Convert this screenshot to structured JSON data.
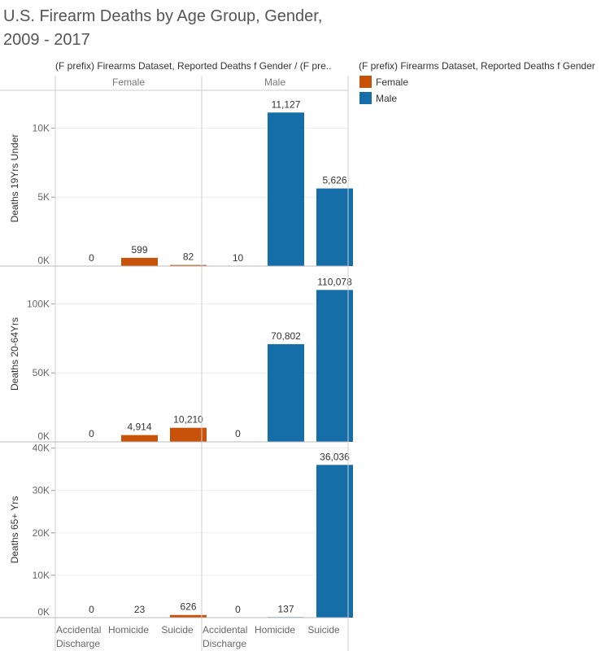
{
  "title": "U.S. Firearm Deaths by Age Group, Gender, 2009 - 2017",
  "column_header": "(F prefix) Firearms Dataset, Reported Deaths f Gender / (F pre..",
  "legend": {
    "title": "(F prefix) Firearms Dataset, Reported Deaths f Gender",
    "items": [
      {
        "label": "Female",
        "color": "#c9520a"
      },
      {
        "label": "Male",
        "color": "#166ea8"
      }
    ]
  },
  "chart_data": {
    "type": "bar",
    "genders": [
      "Female",
      "Male"
    ],
    "categories": [
      "Accidental Discharge",
      "Homicide",
      "Suicide"
    ],
    "category_lines": [
      [
        "Accidental",
        "Discharge"
      ],
      [
        "Homicide"
      ],
      [
        "Suicide"
      ]
    ],
    "colors": {
      "Female": "#c9520a",
      "Male": "#166ea8"
    },
    "rows": [
      {
        "label": "Deaths 19Yrs Under",
        "ylim": [
          0,
          12500
        ],
        "ticks": [
          0,
          5000,
          10000
        ],
        "tick_labels": [
          "0K",
          "5K",
          "10K"
        ],
        "values": {
          "Female": [
            0,
            599,
            82
          ],
          "Male": [
            10,
            11127,
            5626
          ]
        },
        "value_labels": {
          "Female": [
            "0",
            "599",
            "82"
          ],
          "Male": [
            "10",
            "11,127",
            "5,626"
          ]
        }
      },
      {
        "label": "Deaths 20-64Yrs",
        "ylim": [
          0,
          125000
        ],
        "ticks": [
          0,
          50000,
          100000
        ],
        "tick_labels": [
          "0K",
          "50K",
          "100K"
        ],
        "values": {
          "Female": [
            0,
            4914,
            10210
          ],
          "Male": [
            0,
            70802,
            110078
          ]
        },
        "value_labels": {
          "Female": [
            "0",
            "4,914",
            "10,210"
          ],
          "Male": [
            "0",
            "70,802",
            "110,078"
          ]
        }
      },
      {
        "label": "Deaths 65+ Yrs",
        "ylim": [
          0,
          40700
        ],
        "ticks": [
          0,
          10000,
          20000,
          30000,
          40000
        ],
        "tick_labels": [
          "0K",
          "10K",
          "20K",
          "30K",
          "40K"
        ],
        "values": {
          "Female": [
            0,
            23,
            626
          ],
          "Male": [
            0,
            137,
            36036
          ]
        },
        "value_labels": {
          "Female": [
            "0",
            "23",
            "626"
          ],
          "Male": [
            "0",
            "137",
            "36,036"
          ]
        }
      }
    ]
  }
}
